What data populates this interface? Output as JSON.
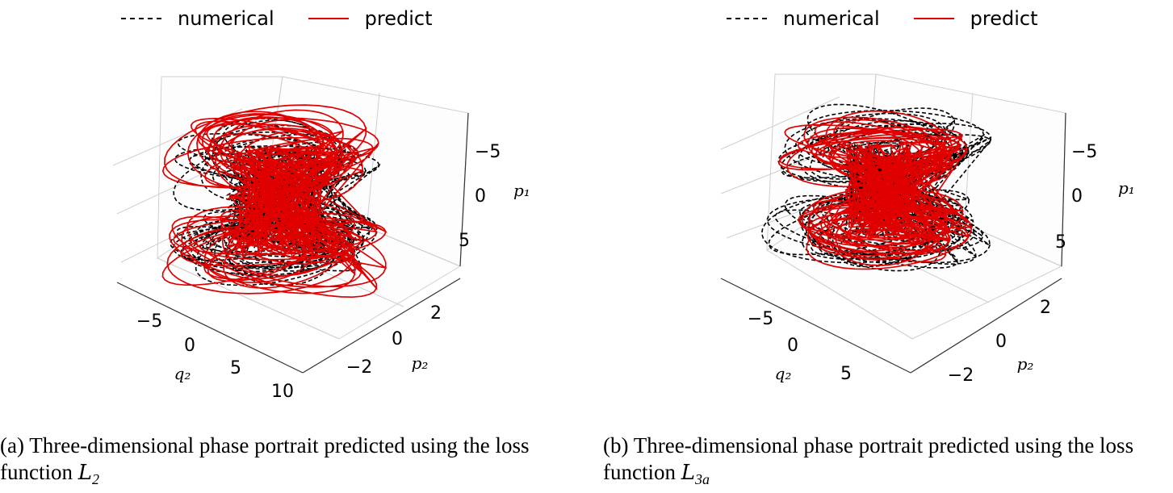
{
  "chart_data": [
    {
      "type": "line",
      "caption": "(a) Three-dimensional phase portrait predicted using the loss function",
      "caption_math": "L",
      "caption_sub": "2",
      "legend": [
        {
          "label": "numerical",
          "style": "dashed",
          "color": "#000000"
        },
        {
          "label": "predict",
          "style": "solid",
          "color": "#e00000"
        }
      ],
      "axes": {
        "x": {
          "label": "q₂",
          "ticks": [
            "−5",
            "0",
            "5",
            "10"
          ]
        },
        "y": {
          "label": "p₂",
          "ticks": [
            "−2",
            "0",
            "2"
          ]
        },
        "z": {
          "label": "p₁",
          "ticks": [
            "−5",
            "0",
            "5"
          ]
        }
      },
      "series": [
        {
          "name": "numerical",
          "description": "chaotic trajectory"
        },
        {
          "name": "predict",
          "description": "chaotic trajectory"
        }
      ],
      "grid": true,
      "legend_placement": "top"
    },
    {
      "type": "line",
      "caption": "(b) Three-dimensional phase portrait predicted using the loss function",
      "caption_math": "L",
      "caption_sub": "3a",
      "legend": [
        {
          "label": "numerical",
          "style": "dashed",
          "color": "#000000"
        },
        {
          "label": "predict",
          "style": "solid",
          "color": "#e00000"
        }
      ],
      "axes": {
        "x": {
          "label": "q₂",
          "ticks": [
            "−5",
            "0",
            "5"
          ]
        },
        "y": {
          "label": "p₂",
          "ticks": [
            "−2",
            "0",
            "2"
          ]
        },
        "z": {
          "label": "p₁",
          "ticks": [
            "−5",
            "0",
            "5"
          ]
        }
      },
      "series": [
        {
          "name": "numerical",
          "description": "chaotic trajectory"
        },
        {
          "name": "predict",
          "description": "chaotic trajectory"
        }
      ],
      "grid": true,
      "legend_placement": "top"
    }
  ]
}
